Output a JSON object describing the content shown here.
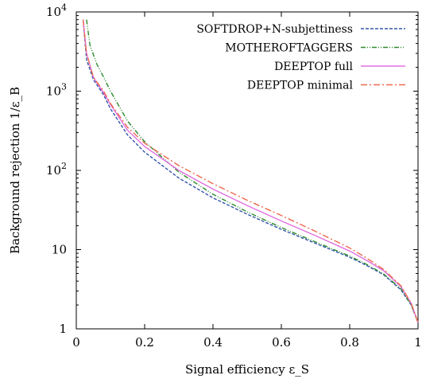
{
  "chart_data": {
    "type": "line",
    "xlabel": "Signal efficiency ε_S",
    "ylabel": "Background rejection 1/ε_B",
    "xlim": [
      0,
      1
    ],
    "ylim": [
      1,
      10000
    ],
    "yscale": "log",
    "grid": false,
    "legend_position": "top-right",
    "x_ticks": [
      {
        "value": 0,
        "label": "0"
      },
      {
        "value": 0.2,
        "label": "0.2"
      },
      {
        "value": 0.4,
        "label": "0.4"
      },
      {
        "value": 0.6,
        "label": "0.6"
      },
      {
        "value": 0.8,
        "label": "0.8"
      },
      {
        "value": 1,
        "label": "1"
      }
    ],
    "y_ticks": [
      {
        "value": 1,
        "label": "1",
        "sup": ""
      },
      {
        "value": 10,
        "label": "10",
        "sup": ""
      },
      {
        "value": 100,
        "label": "10",
        "sup": "2"
      },
      {
        "value": 1000,
        "label": "10",
        "sup": "3"
      },
      {
        "value": 10000,
        "label": "10",
        "sup": "4"
      }
    ],
    "series": [
      {
        "name": "SOFTDROP+N-subjettiness",
        "color": "#3355aa",
        "dash": "4,2",
        "x": [
          0.02,
          0.03,
          0.05,
          0.08,
          0.1,
          0.15,
          0.2,
          0.3,
          0.4,
          0.5,
          0.6,
          0.7,
          0.8,
          0.85,
          0.9,
          0.95,
          0.98,
          1.0
        ],
        "y": [
          8000,
          2500,
          1400,
          900,
          600,
          280,
          170,
          80,
          45,
          28,
          18,
          12,
          8,
          6.3,
          4.8,
          3.1,
          2.0,
          1.2
        ]
      },
      {
        "name": "MOTHEROFTAGGERS",
        "color": "#2e8b2e",
        "dash": "6,2,1,2,1,2",
        "x": [
          0.03,
          0.04,
          0.06,
          0.08,
          0.1,
          0.15,
          0.2,
          0.3,
          0.4,
          0.5,
          0.6,
          0.7,
          0.8,
          0.85,
          0.9,
          0.95,
          0.98,
          1.0
        ],
        "y": [
          8000,
          3800,
          2200,
          1500,
          1000,
          420,
          230,
          95,
          50,
          30,
          19,
          12.5,
          8.3,
          6.5,
          4.9,
          3.2,
          2.0,
          1.2
        ]
      },
      {
        "name": "DEEPTOP full",
        "color": "#e070e0",
        "dash": "",
        "x": [
          0.02,
          0.03,
          0.05,
          0.08,
          0.1,
          0.15,
          0.2,
          0.3,
          0.4,
          0.5,
          0.6,
          0.7,
          0.8,
          0.85,
          0.9,
          0.95,
          0.98,
          1.0
        ],
        "y": [
          8000,
          3000,
          1500,
          950,
          680,
          320,
          200,
          100,
          58,
          36,
          23,
          15,
          9.6,
          7.3,
          5.4,
          3.4,
          2.1,
          1.2
        ]
      },
      {
        "name": "DEEPTOP minimal",
        "color": "#ee6a50",
        "dash": "8,3,2,3",
        "x": [
          0.02,
          0.03,
          0.05,
          0.08,
          0.1,
          0.15,
          0.2,
          0.3,
          0.4,
          0.5,
          0.6,
          0.7,
          0.8,
          0.85,
          0.9,
          0.95,
          0.98,
          1.0
        ],
        "y": [
          8000,
          3000,
          1500,
          1000,
          700,
          350,
          220,
          115,
          68,
          42,
          27,
          17,
          10.5,
          7.8,
          5.6,
          3.5,
          2.1,
          1.2
        ]
      }
    ]
  }
}
